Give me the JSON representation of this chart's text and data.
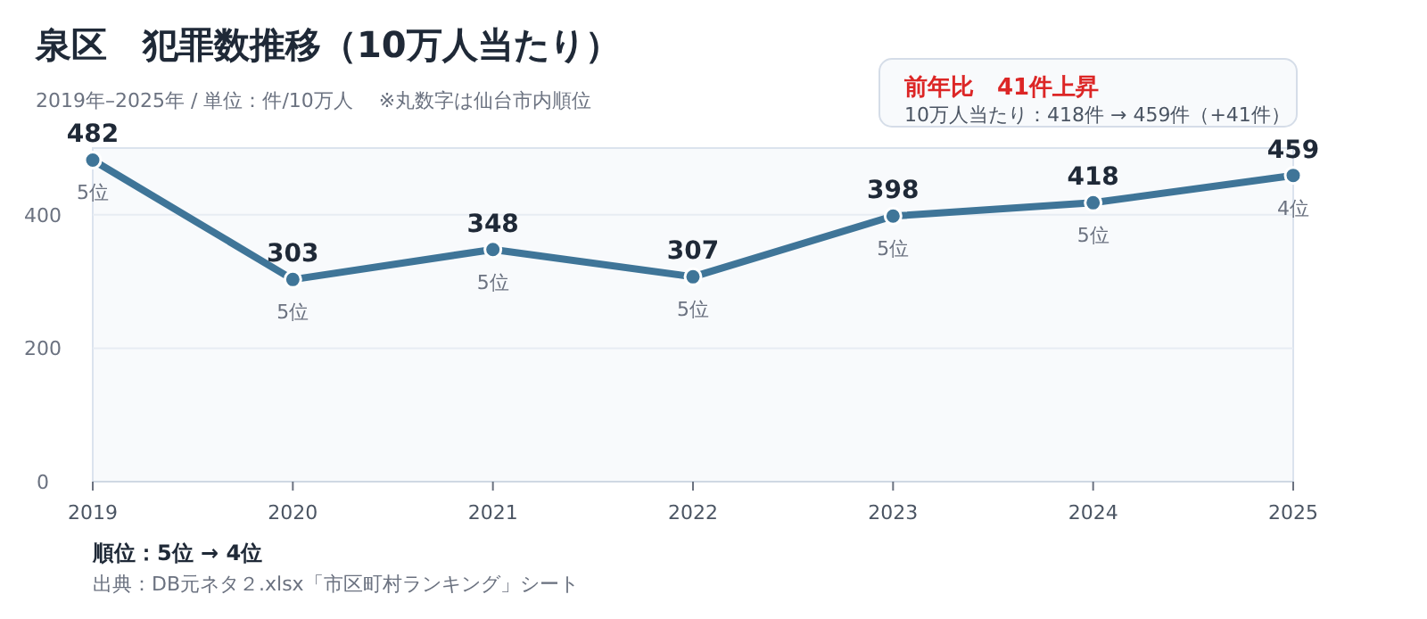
{
  "chart_data": {
    "type": "line",
    "title": "泉区　犯罪数推移（10万人当たり）",
    "subtitle": "2019年–2025年 / 単位：件/10万人　 ※丸数字は仙台市内順位",
    "x": [
      2019,
      2020,
      2021,
      2022,
      2023,
      2024,
      2025
    ],
    "series": [
      {
        "color": "#3f7598",
        "values": [
          482,
          303,
          348,
          307,
          398,
          418,
          459
        ]
      }
    ],
    "xlim": [
      2019,
      2025
    ],
    "ylim": [
      0,
      500
    ],
    "xticks": [
      2019,
      2020,
      2021,
      2022,
      2023,
      2024,
      2025
    ],
    "yticks": [
      0,
      200,
      400
    ],
    "data_labels": true,
    "marker": "circle",
    "grid": "y",
    "annotations": [
      "前年比　41件上昇",
      "10万人当たり：418件 → 459件（+41件）",
      "順位：5位 → 4位",
      "出典：DB元ネタ２.xlsx「市区町村ランキング」シート",
      {
        "text": "5位",
        "x": 2019,
        "y": 482
      },
      {
        "text": "5位",
        "x": 2020,
        "y": 303
      },
      {
        "text": "5位",
        "x": 2021,
        "y": 348
      },
      {
        "text": "5位",
        "x": 2022,
        "y": 307
      },
      {
        "text": "5位",
        "x": 2023,
        "y": 398
      },
      {
        "text": "5位",
        "x": 2024,
        "y": 418
      },
      {
        "text": "4位",
        "x": 2025,
        "y": 459
      }
    ]
  }
}
